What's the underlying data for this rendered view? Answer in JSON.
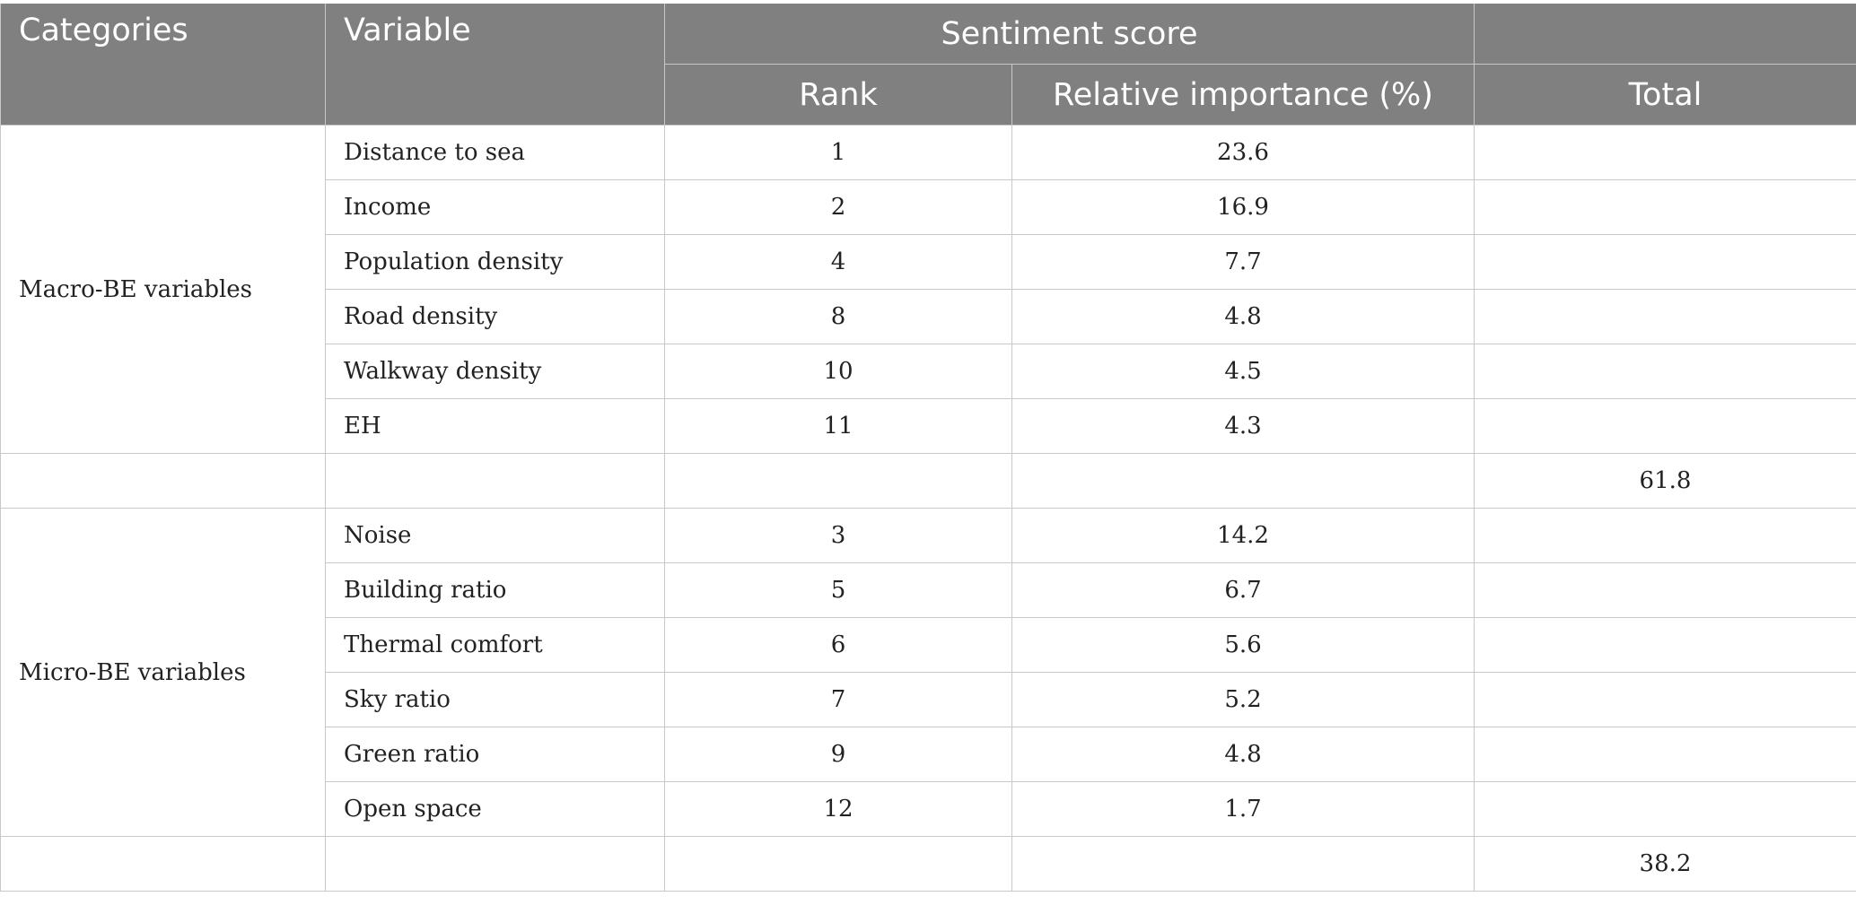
{
  "headers": {
    "categories": "Categories",
    "variable": "Variable",
    "sentiment_score": "Sentiment score",
    "rank": "Rank",
    "relative_importance": "Relative importance (%)",
    "total": "Total"
  },
  "groups": [
    {
      "category": "Macro-BE variables",
      "rows": [
        {
          "variable": "Distance to sea",
          "rank": "1",
          "importance": "23.6"
        },
        {
          "variable": "Income",
          "rank": "2",
          "importance": "16.9"
        },
        {
          "variable": "Population density",
          "rank": "4",
          "importance": "7.7"
        },
        {
          "variable": "Road density",
          "rank": "8",
          "importance": "4.8"
        },
        {
          "variable": "Walkway density",
          "rank": "10",
          "importance": "4.5"
        },
        {
          "variable": "EH",
          "rank": "11",
          "importance": "4.3"
        }
      ],
      "total": "61.8"
    },
    {
      "category": "Micro-BE variables",
      "rows": [
        {
          "variable": "Noise",
          "rank": "3",
          "importance": "14.2"
        },
        {
          "variable": "Building ratio",
          "rank": "5",
          "importance": "6.7"
        },
        {
          "variable": "Thermal comfort",
          "rank": "6",
          "importance": "5.6"
        },
        {
          "variable": "Sky ratio",
          "rank": "7",
          "importance": "5.2"
        },
        {
          "variable": "Green ratio",
          "rank": "9",
          "importance": "4.8"
        },
        {
          "variable": "Open space",
          "rank": "12",
          "importance": "1.7"
        }
      ],
      "total": "38.2"
    }
  ]
}
